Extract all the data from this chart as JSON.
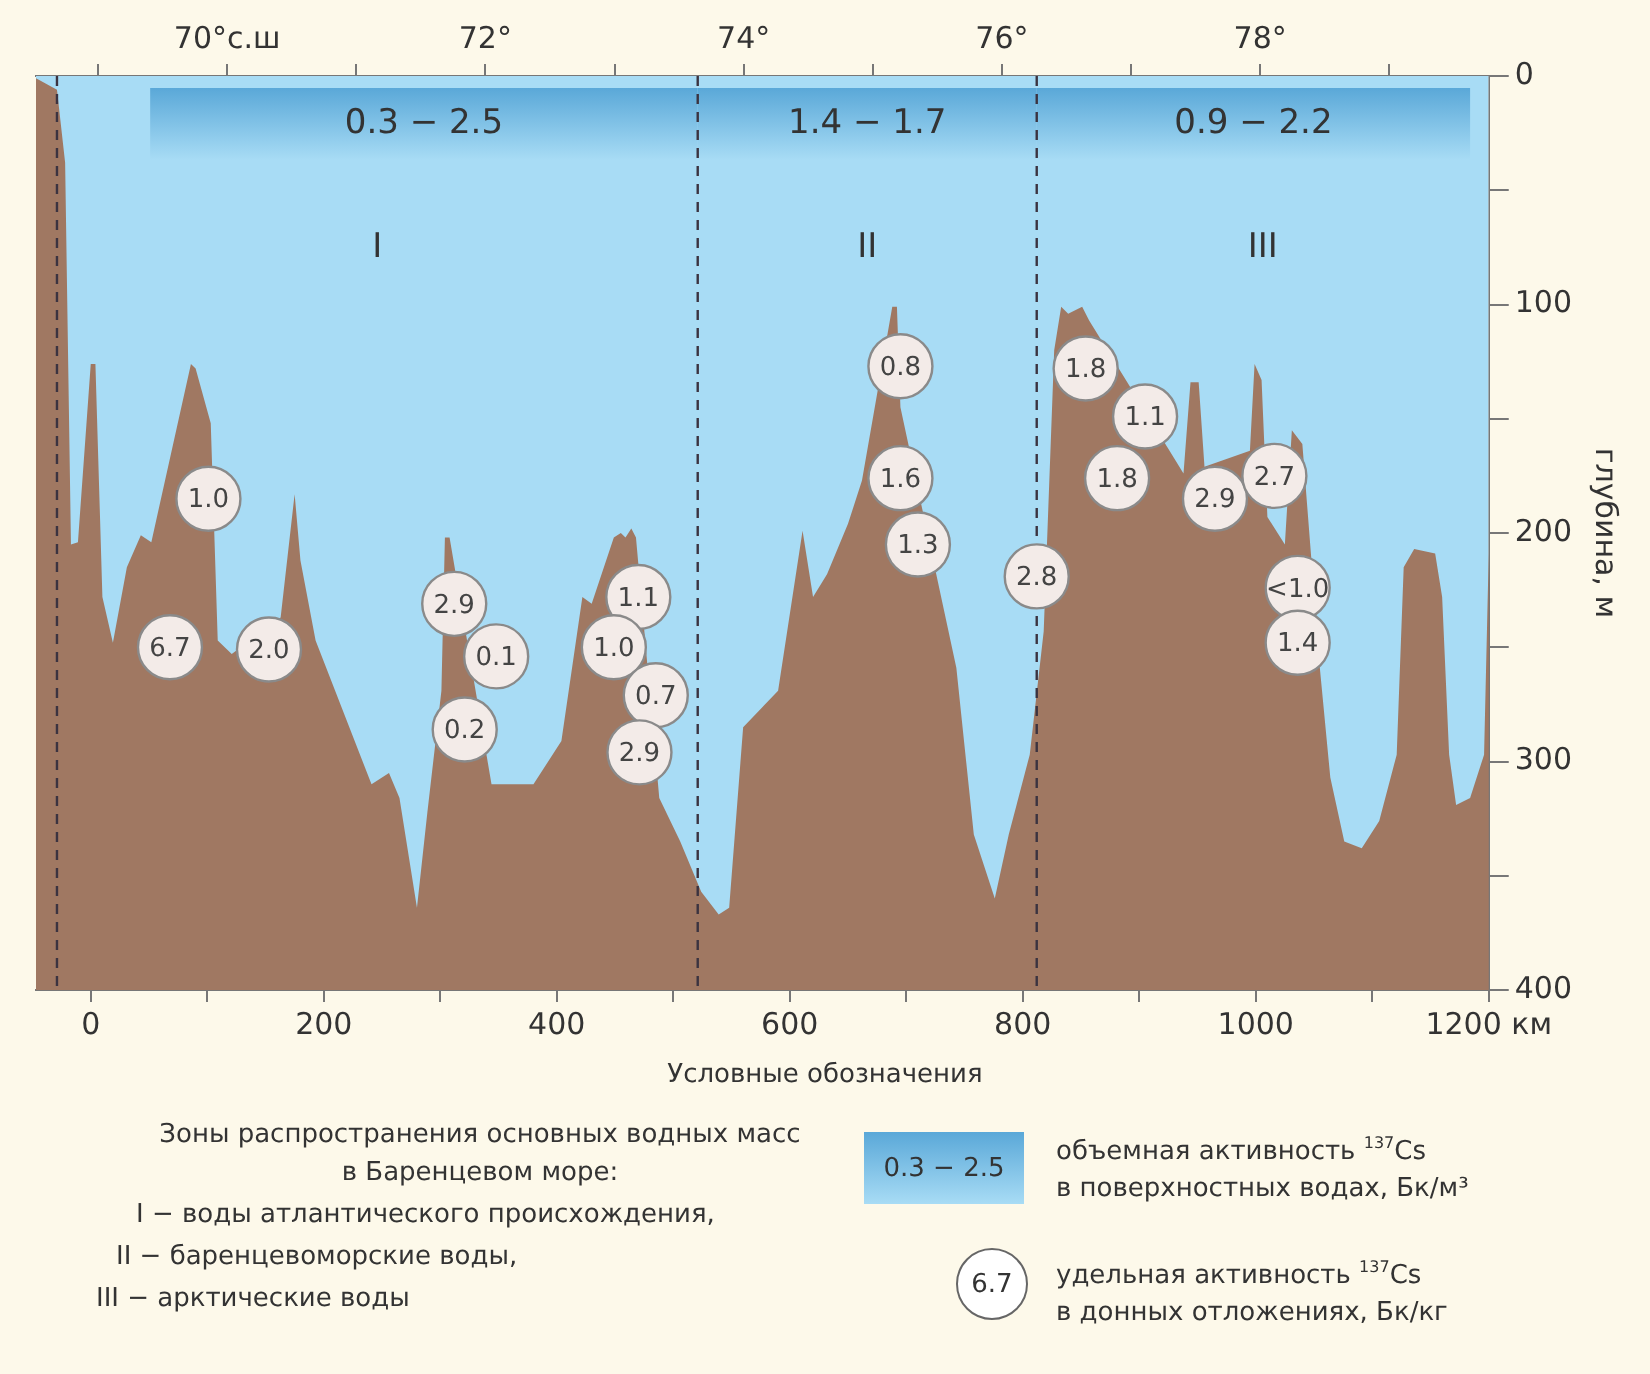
{
  "chart_data": {
    "type": "area",
    "color": "#a8dcf5",
    "x": [
      -47,
      -29,
      -22,
      -17,
      -11,
      0,
      4,
      10,
      19,
      31,
      43,
      52,
      64,
      76,
      82,
      86,
      90,
      103,
      109,
      121,
      139,
      163,
      175,
      180,
      193,
      241,
      256,
      265,
      280,
      289,
      301,
      304,
      308,
      320,
      344,
      380,
      404,
      422,
      430,
      449,
      455,
      459,
      464,
      468,
      476,
      488,
      506,
      524,
      539,
      548,
      560,
      590,
      611,
      620,
      632,
      650,
      662,
      674,
      686,
      688,
      692,
      695,
      710,
      728,
      743,
      758,
      776,
      788,
      806,
      818,
      827,
      833,
      839,
      851,
      857,
      863,
      884,
      902,
      926,
      938,
      944,
      951,
      956,
      980,
      995,
      999,
      1005,
      1010,
      1025,
      1031,
      1040,
      1046,
      1055,
      1064,
      1076,
      1091,
      1106,
      1121,
      1127,
      1136,
      1154,
      1160,
      1166,
      1172,
      1184,
      1196,
      1200
    ],
    "values": [
      1,
      6,
      38,
      205,
      204,
      126,
      126,
      228,
      248,
      215,
      201,
      204,
      null,
      null,
      null,
      126,
      128,
      152,
      247,
      253,
      null,
      237,
      183,
      212,
      247,
      310,
      305,
      316,
      364,
      322,
      269,
      202,
      202,
      null,
      310,
      310,
      291,
      228,
      231,
      202,
      200,
      202,
      198,
      202,
      null,
      316,
      335,
      357,
      367,
      364,
      285,
      269,
      199,
      228,
      218,
      196,
      177,
      142,
      null,
      101,
      101,
      145,
      null,
      null,
      259,
      332,
      360,
      332,
      297,
      243,
      120,
      101,
      104,
      101,
      107,
      null,
      null,
      null,
      164,
      174,
      134,
      134,
      171,
      null,
      164,
      126,
      133,
      193,
      205,
      155,
      161,
      null,
      259,
      307,
      335,
      338,
      326,
      297,
      215,
      207,
      209,
      228,
      297,
      319,
      316,
      297,
      209
    ],
    "xlim": [
      -47,
      1200
    ],
    "xticks": [
      0,
      {
        "value": 100,
        "label": null
      },
      200,
      {
        "value": 300,
        "label": null
      },
      400,
      {
        "value": 500,
        "label": null
      },
      600,
      {
        "value": 700,
        "label": null
      },
      800,
      {
        "value": 900,
        "label": null
      },
      1000,
      {
        "value": 1100,
        "label": null
      },
      {
        "value": 1200,
        "label": "1200 км"
      }
    ],
    "x2lim": [
      68.52,
      79.77
    ],
    "x2ticks": [
      {
        "value": 69,
        "label": null
      },
      {
        "value": 70,
        "label": "70°с.ш"
      },
      {
        "value": 71,
        "label": null
      },
      {
        "value": 72,
        "label": "72°"
      },
      {
        "value": 73,
        "label": null
      },
      {
        "value": 74,
        "label": "74°"
      },
      {
        "value": 75,
        "label": null
      },
      {
        "value": 76,
        "label": "76°"
      },
      {
        "value": 77,
        "label": null
      },
      {
        "value": 78,
        "label": "78°"
      },
      {
        "value": 79,
        "label": null
      }
    ],
    "ylim": [
      400,
      0
    ],
    "yticks": [
      0,
      {
        "value": 50,
        "label": null
      },
      100,
      {
        "value": 150,
        "label": null
      },
      200,
      {
        "value": 250,
        "label": null
      },
      300,
      {
        "value": 350,
        "label": null
      },
      400
    ],
    "ylabel": "глубина, м",
    "legend": false,
    "ref_lines": [
      {
        "axis": "x",
        "value": -29,
        "color": "#3b3340",
        "line_style": "dashed"
      },
      {
        "axis": "x",
        "value": 521,
        "color": "#3b3340",
        "line_style": "dashed"
      },
      {
        "axis": "x",
        "value": 812,
        "color": "#3b3340",
        "line_style": "dashed"
      }
    ],
    "bands": [
      {
        "axis": "y",
        "from": 400,
        "to": 0,
        "color": "#a07862"
      },
      {
        "axis": "x",
        "from": 51,
        "to": 521,
        "label": "0.3 − 2.5",
        "color": "#5aa8d8"
      },
      {
        "axis": "x",
        "from": 521,
        "to": 812,
        "label": "1.4 − 1.7",
        "color": "#5aa8d8"
      },
      {
        "axis": "x",
        "from": 812,
        "to": 1184,
        "label": "0.9 − 2.2",
        "color": "#5aa8d8"
      }
    ],
    "annotations": [
      {
        "text": "1.0",
        "x": 101,
        "y": 185
      },
      {
        "text": "6.7",
        "x": 68,
        "y": 250
      },
      {
        "text": "2.0",
        "x": 153,
        "y": 251
      },
      {
        "text": "2.9",
        "x": 312,
        "y": 231
      },
      {
        "text": "0.1",
        "x": 348,
        "y": 254
      },
      {
        "text": "0.2",
        "x": 321,
        "y": 286
      },
      {
        "text": "1.1",
        "x": 470,
        "y": 228
      },
      {
        "text": "1.0",
        "x": 449,
        "y": 250
      },
      {
        "text": "0.7",
        "x": 485,
        "y": 271
      },
      {
        "text": "2.9",
        "x": 471,
        "y": 296
      },
      {
        "text": "0.8",
        "x": 695,
        "y": 127
      },
      {
        "text": "1.6",
        "x": 695,
        "y": 176
      },
      {
        "text": "1.3",
        "x": 710,
        "y": 205
      },
      {
        "text": "2.8",
        "x": 812,
        "y": 219
      },
      {
        "text": "1.8",
        "x": 854,
        "y": 128
      },
      {
        "text": "1.1",
        "x": 905,
        "y": 149
      },
      {
        "text": "1.8",
        "x": 881,
        "y": 176
      },
      {
        "text": "2.9",
        "x": 965,
        "y": 185
      },
      {
        "text": "2.7",
        "x": 1016,
        "y": 175
      },
      {
        "text": "<1.0",
        "x": 1036,
        "y": 224
      },
      {
        "text": "1.4",
        "x": 1036,
        "y": 248
      },
      "I",
      "II",
      "III",
      "Условные обозначения",
      "Зоны распространения основных водных масс\nв Баренцевом море:",
      "I − воды атлантического происхождения,",
      "II − баренцевоморские воды,",
      "III − арктические воды",
      "0.3 − 2.5",
      "объемная активность $^{137}$Cs\nв поверхностных водах, Бк/м³",
      "6.7",
      "удельная активность $^{137}$Cs\nв донных отложениях, Бк/кг"
    ]
  }
}
